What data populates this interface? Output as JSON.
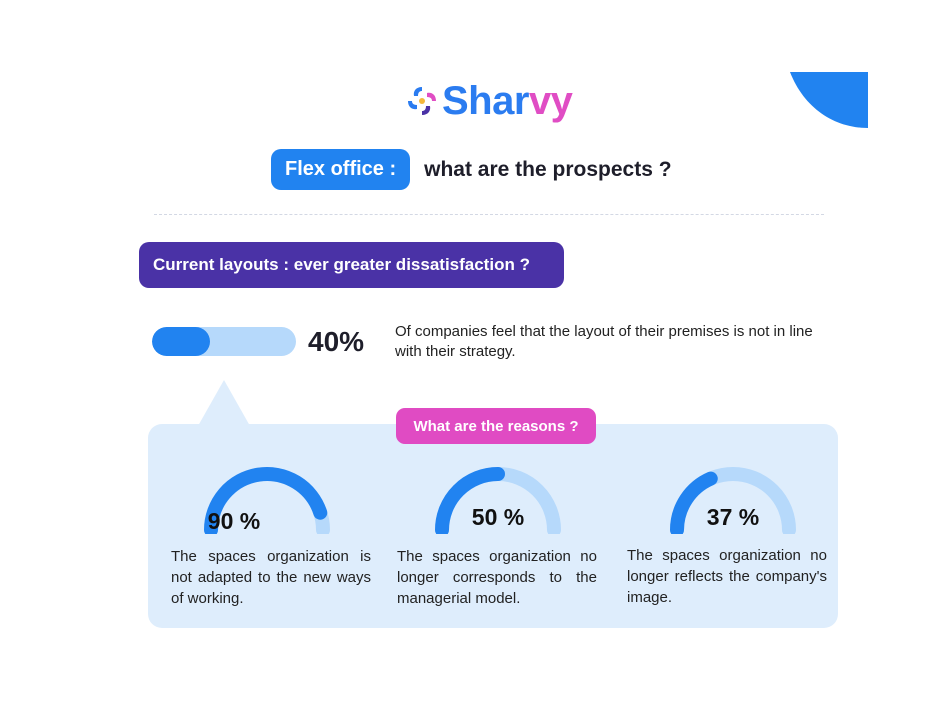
{
  "brand": {
    "name_part1": "Shar",
    "name_part2": "vy",
    "colors": {
      "blue": "#2b7cf0",
      "pink": "#e04dc4",
      "purple": "#4a32a6",
      "yellow": "#f4b83a"
    }
  },
  "header": {
    "title_highlight": "Flex office :",
    "title_rest": "what are the prospects ?"
  },
  "section": {
    "title": "Current layouts : ever greater dissatisfaction ?"
  },
  "stat": {
    "value": 40,
    "label": "40%",
    "description": "Of companies feel that the layout of their premises is not in line with their strategy."
  },
  "reasons": {
    "title": "What are the reasons ?",
    "items": [
      {
        "value": 90,
        "label": "90 %",
        "description": "The spaces organization is not adapted to the new ways of working."
      },
      {
        "value": 50,
        "label": "50 %",
        "description": "The spaces organization no longer corresponds to the managerial model."
      },
      {
        "value": 37,
        "label": "37 %",
        "description": "The spaces organization no longer reflects the company's image."
      }
    ]
  },
  "colors": {
    "accent": "#2183f0",
    "track": "#b6d9fb",
    "panel": "#deedfc",
    "reasons_pill": "#e04bc3"
  }
}
